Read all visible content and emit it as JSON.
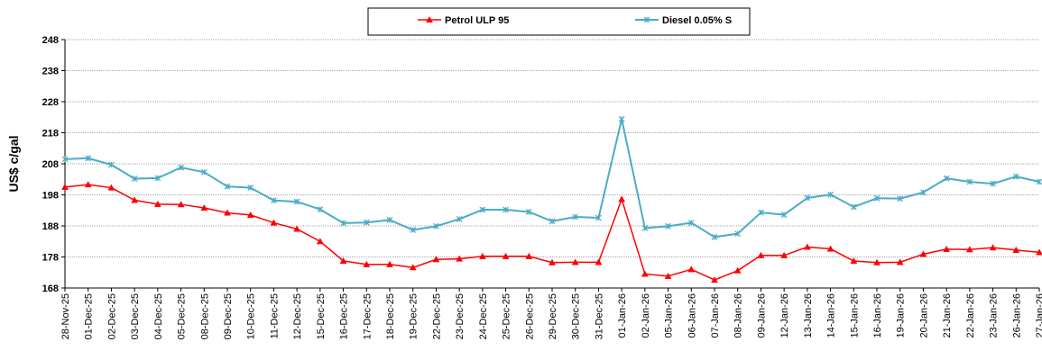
{
  "chart_data": {
    "type": "line",
    "title": "",
    "xlabel": "",
    "ylabel": "US$ c/gal",
    "ylim": [
      168,
      248
    ],
    "yticks": [
      168,
      178,
      188,
      198,
      208,
      218,
      228,
      238,
      248
    ],
    "grid": true,
    "legend_position": "top-center",
    "categories": [
      "28-Nov-25",
      "01-Dec-25",
      "02-Dec-25",
      "03-Dec-25",
      "04-Dec-25",
      "05-Dec-25",
      "08-Dec-25",
      "09-Dec-25",
      "10-Dec-25",
      "11-Dec-25",
      "12-Dec-25",
      "15-Dec-25",
      "16-Dec-25",
      "17-Dec-25",
      "18-Dec-25",
      "19-Dec-25",
      "22-Dec-25",
      "23-Dec-25",
      "24-Dec-25",
      "25-Dec-25",
      "26-Dec-25",
      "29-Dec-25",
      "30-Dec-25",
      "31-Dec-25",
      "01-Jan-26",
      "02-Jan-26",
      "05-Jan-26",
      "06-Jan-26",
      "07-Jan-26",
      "08-Jan-26",
      "09-Jan-26",
      "12-Jan-26",
      "13-Jan-26",
      "14-Jan-26",
      "15-Jan-26",
      "16-Jan-26",
      "19-Jan-26",
      "20-Jan-26",
      "21-Jan-26",
      "22-Jan-26",
      "23-Jan-26",
      "26-Jan-26",
      "27-Jan-26"
    ],
    "series": [
      {
        "name": "Petrol ULP 95",
        "color": "#ff0000",
        "marker": "triangle",
        "values": [
          200.5,
          201.3,
          200.3,
          196.3,
          195.0,
          194.9,
          193.8,
          192.2,
          191.5,
          189.0,
          187.0,
          183.0,
          176.7,
          175.6,
          175.6,
          174.6,
          177.2,
          177.4,
          178.2,
          178.2,
          178.2,
          176.2,
          176.3,
          176.3,
          196.6,
          172.5,
          171.8,
          174.0,
          170.6,
          173.6,
          178.5,
          178.5,
          181.2,
          180.6,
          176.7,
          176.2,
          176.3,
          178.9,
          180.5,
          180.4,
          181.0,
          180.2,
          179.5
        ]
      },
      {
        "name": "Diesel 0.05% S",
        "color": "#4bacc6",
        "marker": "star",
        "values": [
          209.5,
          209.8,
          207.7,
          203.2,
          203.4,
          206.8,
          205.3,
          200.7,
          200.3,
          196.2,
          195.8,
          193.3,
          188.9,
          189.1,
          189.9,
          186.7,
          187.9,
          190.2,
          193.2,
          193.2,
          192.5,
          189.5,
          190.9,
          190.6,
          222.4,
          187.3,
          187.9,
          189.0,
          184.4,
          185.5,
          192.3,
          191.6,
          197.0,
          198.1,
          194.1,
          196.9,
          196.8,
          198.8,
          203.3,
          202.2,
          201.6,
          203.9,
          202.2
        ]
      }
    ]
  }
}
